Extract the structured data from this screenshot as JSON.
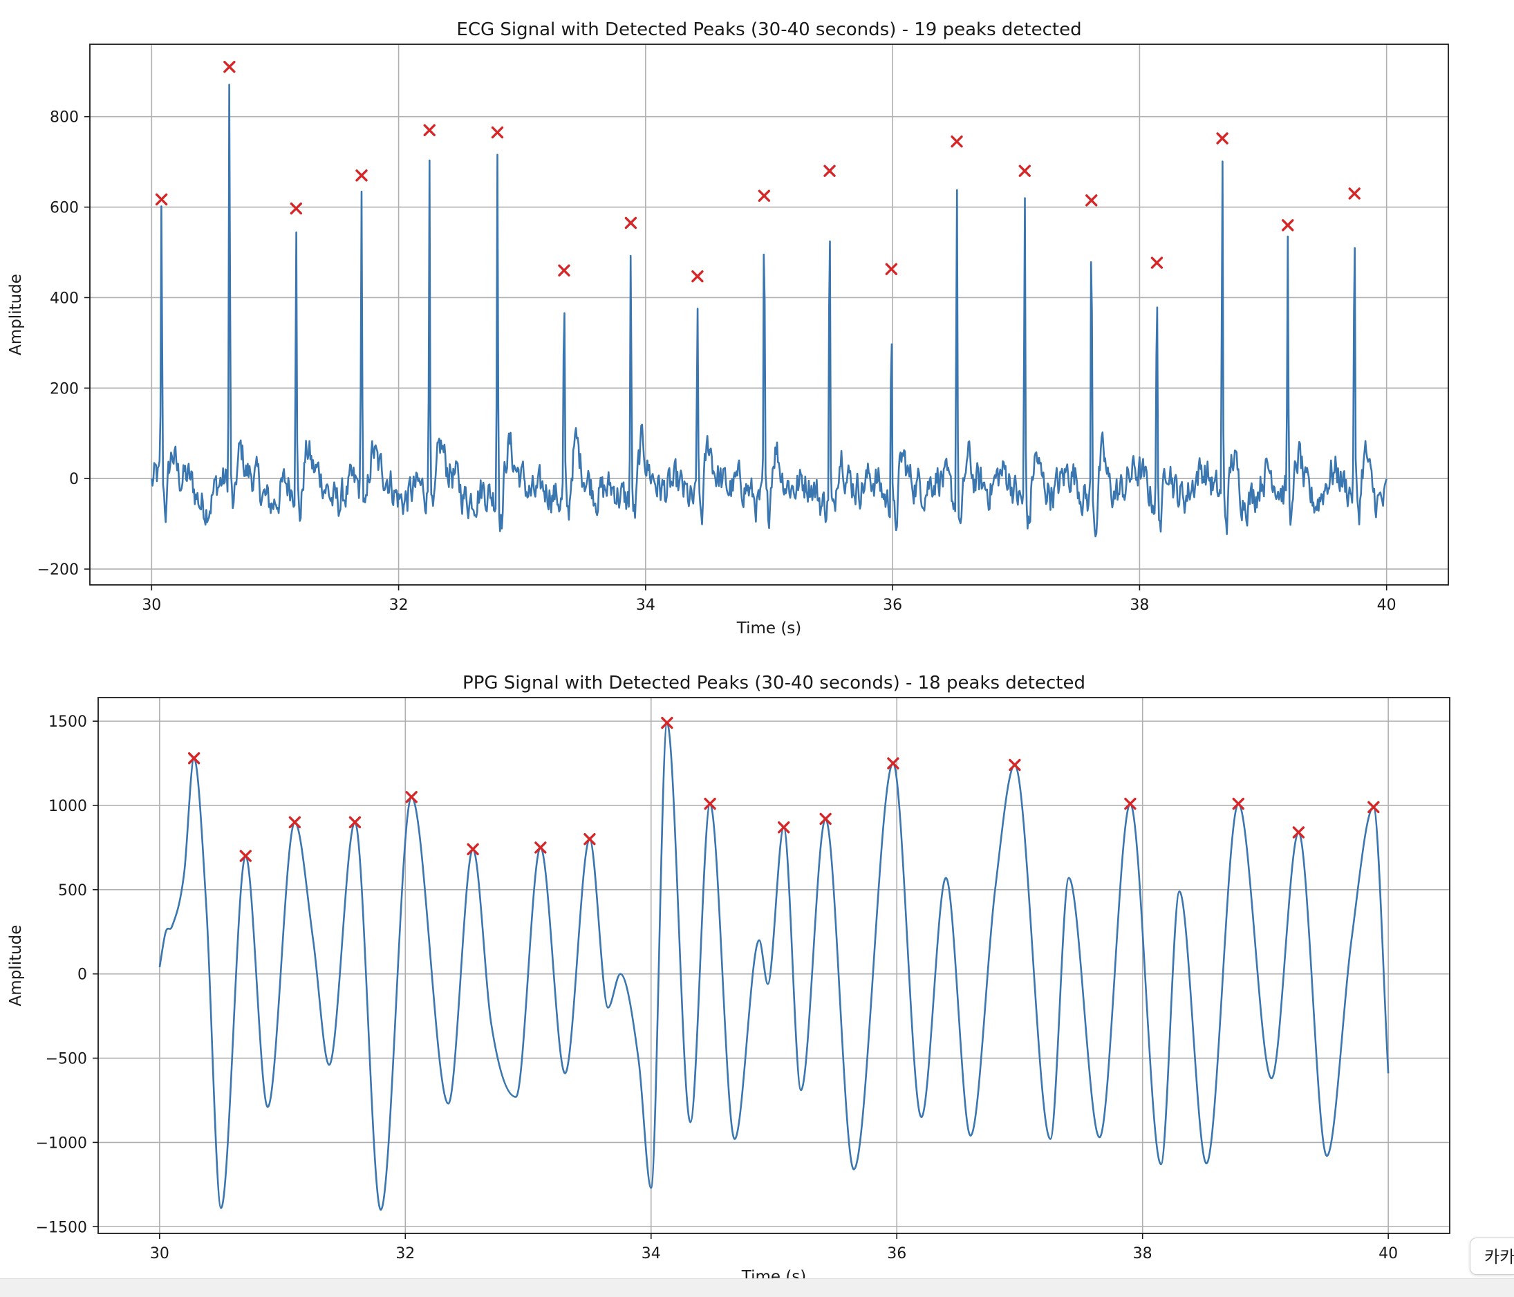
{
  "chart_data": [
    {
      "type": "line",
      "title": "ECG Signal with Detected Peaks (30-40 seconds) - 19 peaks detected",
      "xlabel": "Time (s)",
      "ylabel": "Amplitude",
      "xlim": [
        29.5,
        40.5
      ],
      "ylim": [
        -235,
        960
      ],
      "xticks": [
        30,
        32,
        34,
        36,
        38,
        40
      ],
      "xtick_labels": [
        "30",
        "32",
        "34",
        "36",
        "38",
        "40"
      ],
      "yticks": [
        -200,
        0,
        200,
        400,
        600,
        800
      ],
      "ytick_labels": [
        "−200",
        "0",
        "200",
        "400",
        "600",
        "800"
      ],
      "grid": true,
      "legend": "none",
      "line_color": "#3a76af",
      "marker_color": "#d62728",
      "marker": "x",
      "series": [
        {
          "signal_start": 30,
          "signal_end": 40,
          "peaks": {
            "x": [
              30.08,
              30.63,
              31.17,
              31.7,
              32.25,
              32.8,
              33.34,
              33.88,
              34.42,
              34.96,
              35.49,
              35.99,
              36.52,
              37.07,
              37.61,
              38.14,
              38.67,
              39.2,
              39.74
            ],
            "y": [
              617,
              910,
              597,
              670,
              770,
              765,
              460,
              565,
              447,
              625,
              680,
              463,
              745,
              680,
              615,
              477,
              752,
              560,
              630
            ]
          }
        }
      ]
    },
    {
      "type": "line",
      "title": "PPG Signal with Detected Peaks (30-40 seconds) - 18 peaks detected",
      "xlabel": "Time (s)",
      "ylabel": "Amplitude",
      "xlim": [
        29.5,
        40.5
      ],
      "ylim": [
        -1540,
        1640
      ],
      "xticks": [
        30,
        32,
        34,
        36,
        38,
        40
      ],
      "xtick_labels": [
        "30",
        "32",
        "34",
        "36",
        "38",
        "40"
      ],
      "yticks": [
        -1500,
        -1000,
        -500,
        0,
        500,
        1000,
        1500
      ],
      "ytick_labels": [
        "−1500",
        "−1000",
        "−500",
        "0",
        "500",
        "1000",
        "1500"
      ],
      "grid": true,
      "legend": "none",
      "line_color": "#3a76af",
      "marker_color": "#d62728",
      "marker": "x",
      "series": [
        {
          "signal_start": 30,
          "signal_end": 40,
          "curve": {
            "x": [
              30.0,
              30.05,
              30.1,
              30.2,
              30.28,
              30.38,
              30.5,
              30.7,
              30.88,
              31.1,
              31.25,
              31.38,
              31.59,
              31.8,
              32.05,
              32.35,
              32.55,
              32.7,
              32.9,
              33.1,
              33.3,
              33.5,
              33.65,
              33.75,
              33.9,
              34.0,
              34.13,
              34.32,
              34.48,
              34.68,
              34.88,
              34.95,
              35.08,
              35.22,
              35.42,
              35.65,
              35.97,
              36.2,
              36.4,
              36.6,
              36.8,
              36.96,
              37.25,
              37.4,
              37.65,
              37.9,
              38.15,
              38.3,
              38.52,
              38.78,
              39.05,
              39.27,
              39.5,
              39.7,
              39.88,
              40.0
            ],
            "y": [
              40,
              250,
              280,
              600,
              1280,
              400,
              -1390,
              700,
              -790,
              900,
              200,
              -540,
              900,
              -1400,
              1050,
              -770,
              740,
              -300,
              -730,
              750,
              -590,
              800,
              -200,
              0,
              -520,
              -1270,
              1490,
              -880,
              1010,
              -980,
              200,
              -60,
              870,
              -690,
              920,
              -1160,
              1250,
              -850,
              570,
              -960,
              500,
              1240,
              -980,
              570,
              -970,
              1010,
              -1130,
              490,
              -1125,
              1010,
              -620,
              840,
              -1080,
              200,
              990,
              -590
            ]
          },
          "peaks": {
            "x": [
              30.28,
              30.7,
              31.1,
              31.59,
              32.05,
              32.55,
              33.1,
              33.5,
              34.13,
              34.48,
              35.08,
              35.42,
              35.97,
              36.96,
              37.9,
              38.78,
              39.27,
              39.88
            ],
            "y": [
              1280,
              700,
              900,
              900,
              1050,
              740,
              750,
              800,
              1490,
              1010,
              870,
              920,
              1250,
              1240,
              1010,
              1010,
              840,
              990
            ]
          }
        }
      ]
    }
  ],
  "corner_button_label": "카카"
}
